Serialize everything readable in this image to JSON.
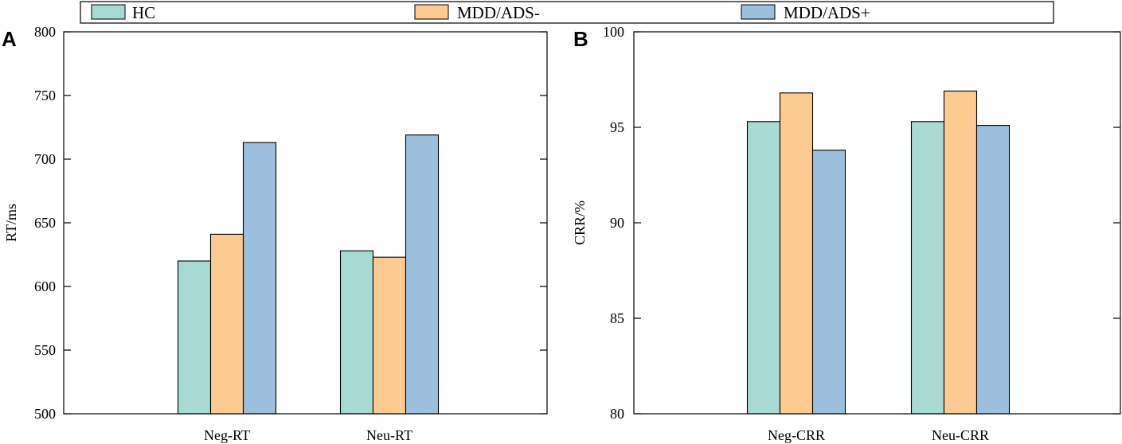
{
  "colors": {
    "HC": "#a6dad3",
    "MDD/ADS-": "#fdca92",
    "MDD/ADS+": "#9bbfdc"
  },
  "legend": {
    "items": [
      "HC",
      "MDD/ADS-",
      "MDD/ADS+"
    ]
  },
  "chart_data": [
    {
      "type": "bar",
      "panel": "A",
      "title": "",
      "xlabel": "",
      "ylabel": "RT/ms",
      "ylim": [
        500,
        800
      ],
      "yticks": [
        500,
        550,
        600,
        650,
        700,
        750,
        800
      ],
      "categories": [
        "Neg-RT",
        "Neu-RT"
      ],
      "series": [
        {
          "name": "HC",
          "values": [
            620,
            628
          ]
        },
        {
          "name": "MDD/ADS-",
          "values": [
            641,
            623
          ]
        },
        {
          "name": "MDD/ADS+",
          "values": [
            713,
            719
          ]
        }
      ]
    },
    {
      "type": "bar",
      "panel": "B",
      "title": "",
      "xlabel": "",
      "ylabel": "CRR/%",
      "ylim": [
        80,
        100
      ],
      "yticks": [
        80,
        85,
        90,
        95,
        100
      ],
      "categories": [
        "Neg-CRR",
        "Neu-CRR"
      ],
      "series": [
        {
          "name": "HC",
          "values": [
            95.3,
            95.3
          ]
        },
        {
          "name": "MDD/ADS-",
          "values": [
            96.8,
            96.9
          ]
        },
        {
          "name": "MDD/ADS+",
          "values": [
            93.8,
            95.1
          ]
        }
      ]
    }
  ]
}
